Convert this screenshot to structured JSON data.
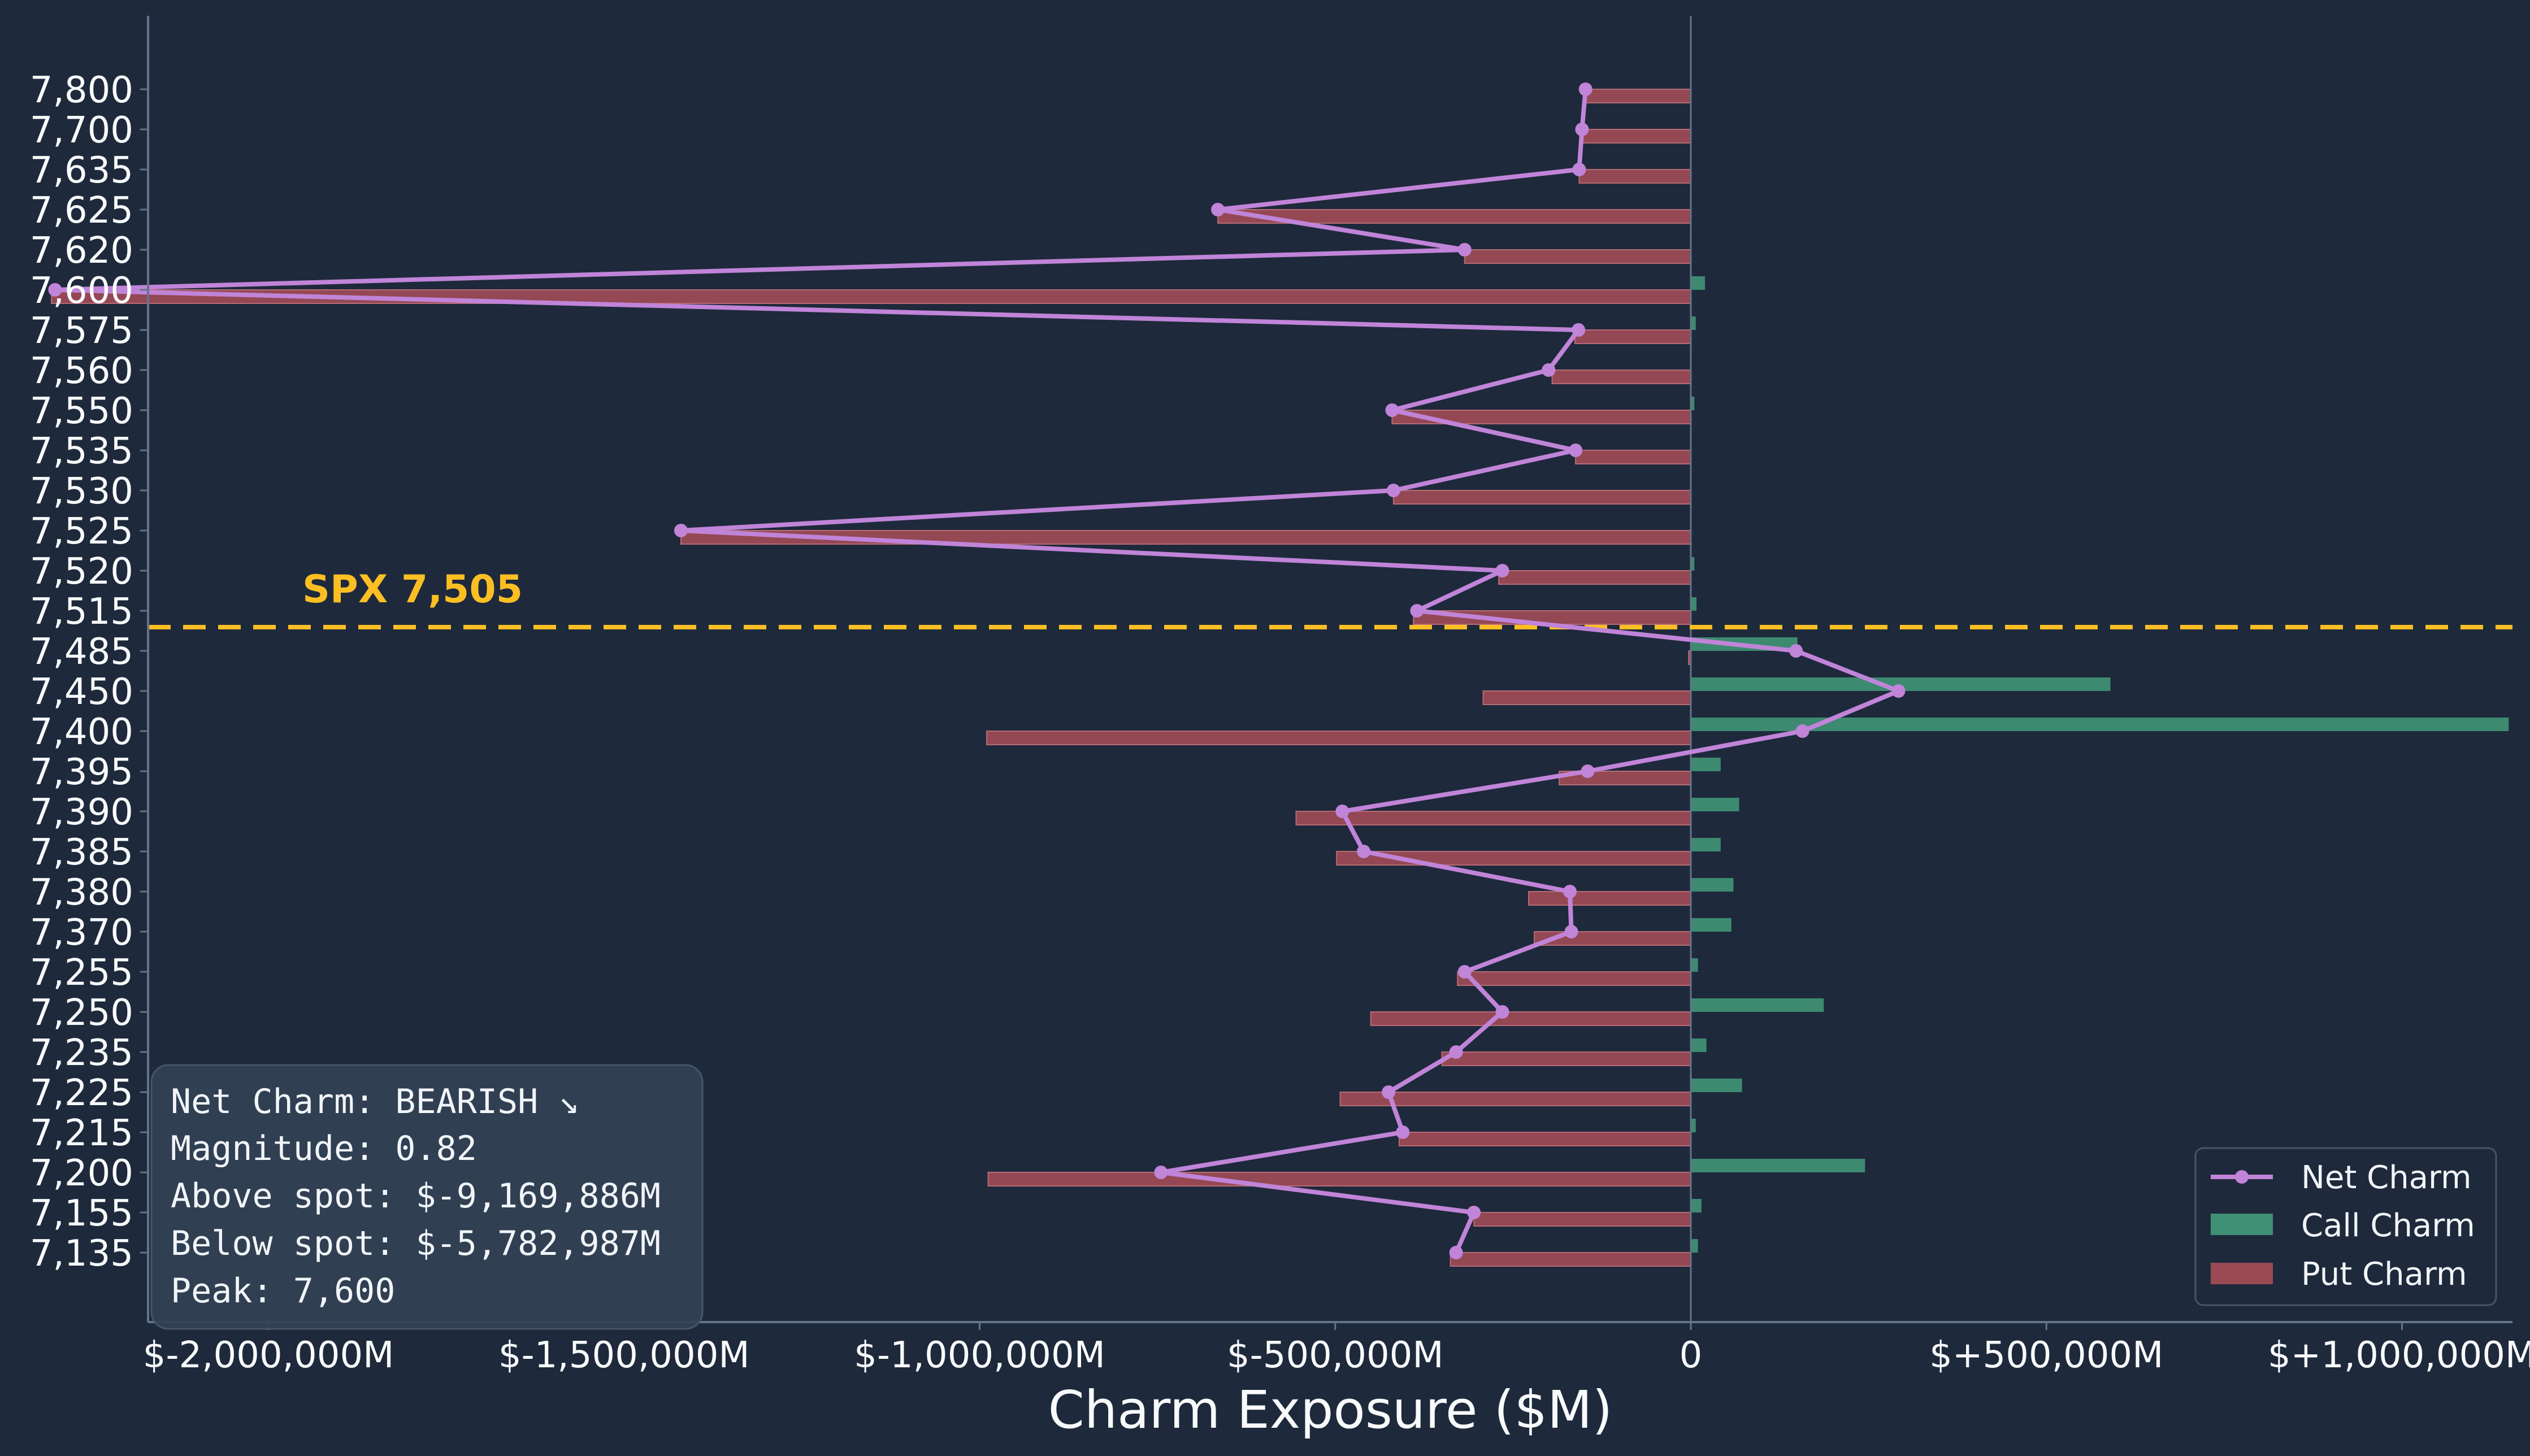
{
  "colors": {
    "background": "#1e293b",
    "net": "#c084d8",
    "call": "#3f8f74",
    "put": "#9b4a55",
    "spot": "#fbbf24",
    "axis": "#64748b",
    "text": "#f8fafc",
    "infobox_bg": "#334155"
  },
  "chart_data": {
    "type": "bar",
    "orientation": "horizontal",
    "xlabel": "Charm Exposure ($M)",
    "ylabel": "",
    "title": "",
    "xlim": [
      -2500000,
      1330000
    ],
    "x_ticks": [
      {
        "value": -2000000,
        "label": "$-2,000,000M"
      },
      {
        "value": -1500000,
        "label": "$-1,500,000M"
      },
      {
        "value": -1000000,
        "label": "$-1,000,000M"
      },
      {
        "value": -500000,
        "label": "$-500,000M"
      },
      {
        "value": 0,
        "label": "0"
      },
      {
        "value": 500000,
        "label": "$+500,000M"
      },
      {
        "value": 1000000,
        "label": "$+1,000,000M"
      }
    ],
    "categories": [
      "7,800",
      "7,700",
      "7,635",
      "7,625",
      "7,620",
      "7,600",
      "7,575",
      "7,560",
      "7,550",
      "7,535",
      "7,530",
      "7,525",
      "7,520",
      "7,515",
      "7,485",
      "7,450",
      "7,400",
      "7,395",
      "7,390",
      "7,385",
      "7,380",
      "7,370",
      "7,255",
      "7,250",
      "7,235",
      "7,225",
      "7,215",
      "7,200",
      "7,155",
      "7,135"
    ],
    "series": [
      {
        "name": "Net Charm",
        "kind": "line",
        "values": [
          -148000,
          -153000,
          -157000,
          -665000,
          -318000,
          -2300000,
          -158000,
          -200000,
          -420000,
          -162000,
          -418000,
          -1420000,
          -265000,
          -385000,
          148000,
          292000,
          157000,
          -145000,
          -490000,
          -460000,
          -170000,
          -168000,
          -318000,
          -265000,
          -330000,
          -425000,
          -405000,
          -745000,
          -305000,
          -330000
        ]
      },
      {
        "name": "Call Charm",
        "kind": "bar",
        "values": [
          0,
          0,
          0,
          0,
          0,
          20000,
          7000,
          0,
          5000,
          0,
          0,
          0,
          5000,
          8000,
          150000,
          590000,
          1150000,
          42000,
          68000,
          42000,
          60000,
          57000,
          10000,
          187000,
          22000,
          72000,
          7000,
          245000,
          15000,
          10000
        ]
      },
      {
        "name": "Put Charm",
        "kind": "bar",
        "values": [
          -148000,
          -153000,
          -157000,
          -665000,
          -318000,
          -2305000,
          -163000,
          -195000,
          -420000,
          -162000,
          -418000,
          -1420000,
          -270000,
          -390000,
          -3000,
          -292000,
          -990000,
          -185000,
          -555000,
          -498000,
          -228000,
          -220000,
          -328000,
          -450000,
          -350000,
          -493000,
          -410000,
          -988000,
          -305000,
          -338000
        ]
      }
    ],
    "spot": {
      "value": 7505,
      "label": "SPX 7,505"
    },
    "legend": {
      "position": "lower-right",
      "entries": [
        "Net Charm",
        "Call Charm",
        "Put Charm"
      ]
    },
    "grid": false
  },
  "infobox": {
    "lines": [
      "Net Charm: BEARISH ↘",
      "Magnitude: 0.82",
      "Above spot: $-9,169,886M",
      "Below spot: $-5,782,987M",
      "Peak: 7,600"
    ]
  }
}
